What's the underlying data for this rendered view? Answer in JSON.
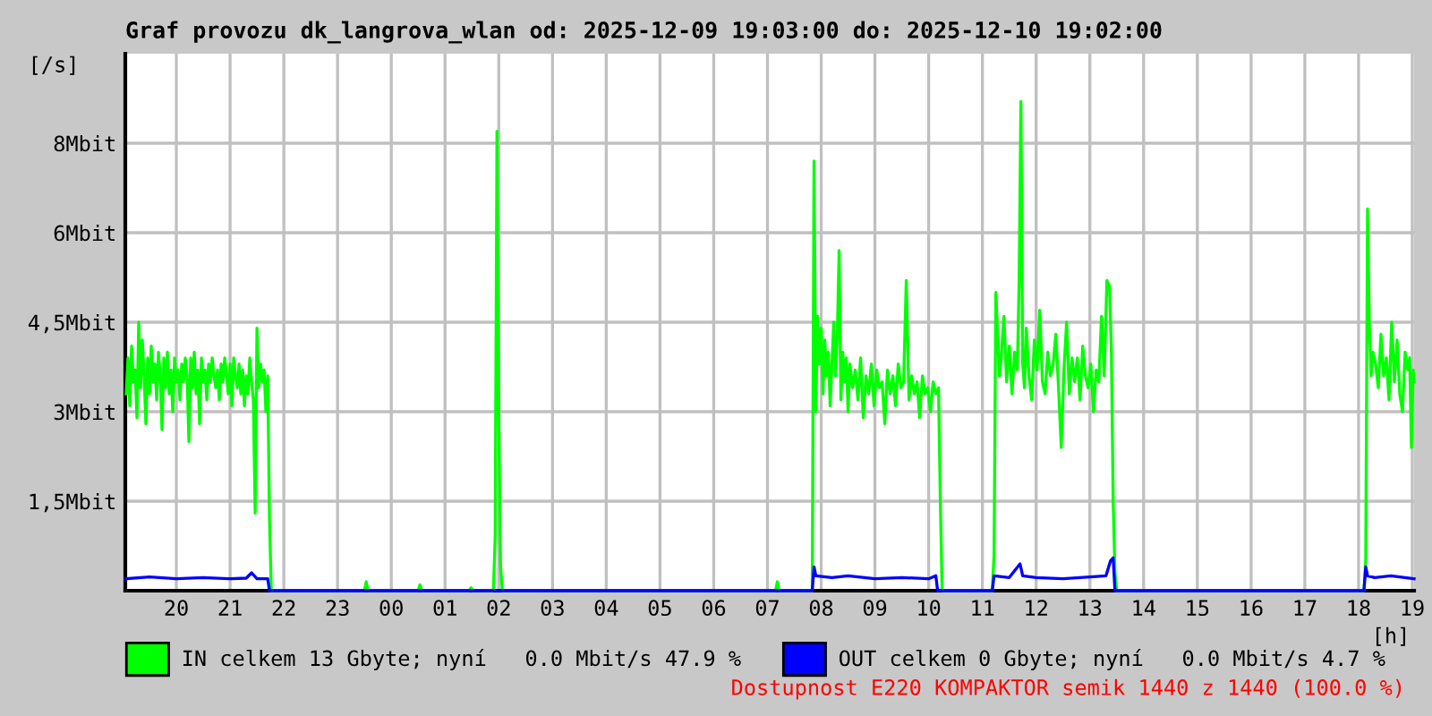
{
  "chart_data": {
    "type": "line",
    "title": "Graf provozu dk_langrova_wlan od: 2025-12-09 19:03:00 do: 2025-12-10 19:02:00",
    "xlabel": "[h]",
    "ylabel": "[/s]",
    "xlim": [
      "2025-12-09T19:03",
      "2025-12-10T19:02"
    ],
    "xticks": [
      {
        "value": "2025-12-09T20:00",
        "label": "20"
      },
      {
        "value": "2025-12-09T21:00",
        "label": "21"
      },
      {
        "value": "2025-12-09T22:00",
        "label": "22"
      },
      {
        "value": "2025-12-09T23:00",
        "label": "23"
      },
      {
        "value": "2025-12-10T00:00",
        "label": "00"
      },
      {
        "value": "2025-12-10T01:00",
        "label": "01"
      },
      {
        "value": "2025-12-10T02:00",
        "label": "02"
      },
      {
        "value": "2025-12-10T03:00",
        "label": "03"
      },
      {
        "value": "2025-12-10T04:00",
        "label": "04"
      },
      {
        "value": "2025-12-10T05:00",
        "label": "05"
      },
      {
        "value": "2025-12-10T06:00",
        "label": "06"
      },
      {
        "value": "2025-12-10T07:00",
        "label": "07"
      },
      {
        "value": "2025-12-10T08:00",
        "label": "08"
      },
      {
        "value": "2025-12-10T09:00",
        "label": "09"
      },
      {
        "value": "2025-12-10T10:00",
        "label": "10"
      },
      {
        "value": "2025-12-10T11:00",
        "label": "11"
      },
      {
        "value": "2025-12-10T12:00",
        "label": "12"
      },
      {
        "value": "2025-12-10T13:00",
        "label": "13"
      },
      {
        "value": "2025-12-10T14:00",
        "label": "14"
      },
      {
        "value": "2025-12-10T15:00",
        "label": "15"
      },
      {
        "value": "2025-12-10T16:00",
        "label": "16"
      },
      {
        "value": "2025-12-10T17:00",
        "label": "17"
      },
      {
        "value": "2025-12-10T18:00",
        "label": "18"
      },
      {
        "value": "2025-12-10T19:00",
        "label": "19"
      }
    ],
    "ylim": [
      0,
      9
    ],
    "yticks": [
      {
        "value": 1.5,
        "label": "1,5Mbit"
      },
      {
        "value": 3,
        "label": "3Mbit"
      },
      {
        "value": 4.5,
        "label": "4,5Mbit"
      },
      {
        "value": 6,
        "label": "6Mbit"
      },
      {
        "value": 7.5,
        "label": "8Mbit"
      }
    ],
    "grid": true,
    "legend": "bottom",
    "marker": "none",
    "line_style": "solid",
    "annotations": [
      "Dostupnost E220 KOMPAKTOR semik 1440 z 1440 (100.0 %)"
    ],
    "series": [
      {
        "name": "IN celkem 13 Gbyte; nyní   0.0 Mbit/s 47.9 %",
        "color": "#00ff00",
        "x": [
          "2025-12-09T19:04",
          "2025-12-09T19:06",
          "2025-12-09T19:08",
          "2025-12-09T19:10",
          "2025-12-09T19:12",
          "2025-12-09T19:14",
          "2025-12-09T19:16",
          "2025-12-09T19:18",
          "2025-12-09T19:20",
          "2025-12-09T19:22",
          "2025-12-09T19:24",
          "2025-12-09T19:26",
          "2025-12-09T19:28",
          "2025-12-09T19:30",
          "2025-12-09T19:32",
          "2025-12-09T19:34",
          "2025-12-09T19:36",
          "2025-12-09T19:38",
          "2025-12-09T19:40",
          "2025-12-09T19:42",
          "2025-12-09T19:44",
          "2025-12-09T19:46",
          "2025-12-09T19:48",
          "2025-12-09T19:50",
          "2025-12-09T19:52",
          "2025-12-09T19:54",
          "2025-12-09T19:56",
          "2025-12-09T19:58",
          "2025-12-09T20:00",
          "2025-12-09T20:02",
          "2025-12-09T20:04",
          "2025-12-09T20:06",
          "2025-12-09T20:08",
          "2025-12-09T20:10",
          "2025-12-09T20:12",
          "2025-12-09T20:14",
          "2025-12-09T20:16",
          "2025-12-09T20:18",
          "2025-12-09T20:20",
          "2025-12-09T20:22",
          "2025-12-09T20:24",
          "2025-12-09T20:26",
          "2025-12-09T20:28",
          "2025-12-09T20:30",
          "2025-12-09T20:32",
          "2025-12-09T20:34",
          "2025-12-09T20:36",
          "2025-12-09T20:38",
          "2025-12-09T20:40",
          "2025-12-09T20:42",
          "2025-12-09T20:44",
          "2025-12-09T20:46",
          "2025-12-09T20:48",
          "2025-12-09T20:50",
          "2025-12-09T20:52",
          "2025-12-09T20:54",
          "2025-12-09T20:56",
          "2025-12-09T20:58",
          "2025-12-09T21:00",
          "2025-12-09T21:02",
          "2025-12-09T21:04",
          "2025-12-09T21:06",
          "2025-12-09T21:08",
          "2025-12-09T21:10",
          "2025-12-09T21:12",
          "2025-12-09T21:14",
          "2025-12-09T21:16",
          "2025-12-09T21:18",
          "2025-12-09T21:20",
          "2025-12-09T21:22",
          "2025-12-09T21:24",
          "2025-12-09T21:26",
          "2025-12-09T21:28",
          "2025-12-09T21:30",
          "2025-12-09T21:32",
          "2025-12-09T21:34",
          "2025-12-09T21:36",
          "2025-12-09T21:38",
          "2025-12-09T21:40",
          "2025-12-09T21:42",
          "2025-12-09T21:44",
          "2025-12-09T21:46",
          "2025-12-09T23:30",
          "2025-12-09T23:32",
          "2025-12-09T23:34",
          "2025-12-10T00:30",
          "2025-12-10T00:32",
          "2025-12-10T00:34",
          "2025-12-10T01:27",
          "2025-12-10T01:29",
          "2025-12-10T01:31",
          "2025-12-10T01:54",
          "2025-12-10T01:56",
          "2025-12-10T01:58",
          "2025-12-10T02:00",
          "2025-12-10T02:02",
          "2025-12-10T02:04",
          "2025-12-10T07:09",
          "2025-12-10T07:11",
          "2025-12-10T07:13",
          "2025-12-10T07:50",
          "2025-12-10T07:52",
          "2025-12-10T07:54",
          "2025-12-10T07:56",
          "2025-12-10T07:58",
          "2025-12-10T08:00",
          "2025-12-10T08:02",
          "2025-12-10T08:04",
          "2025-12-10T08:06",
          "2025-12-10T08:08",
          "2025-12-10T08:10",
          "2025-12-10T08:12",
          "2025-12-10T08:14",
          "2025-12-10T08:16",
          "2025-12-10T08:18",
          "2025-12-10T08:20",
          "2025-12-10T08:22",
          "2025-12-10T08:24",
          "2025-12-10T08:26",
          "2025-12-10T08:28",
          "2025-12-10T08:30",
          "2025-12-10T08:32",
          "2025-12-10T08:35",
          "2025-12-10T08:38",
          "2025-12-10T08:41",
          "2025-12-10T08:44",
          "2025-12-10T08:47",
          "2025-12-10T08:50",
          "2025-12-10T08:53",
          "2025-12-10T08:56",
          "2025-12-10T08:59",
          "2025-12-10T09:02",
          "2025-12-10T09:05",
          "2025-12-10T09:08",
          "2025-12-10T09:11",
          "2025-12-10T09:14",
          "2025-12-10T09:17",
          "2025-12-10T09:20",
          "2025-12-10T09:23",
          "2025-12-10T09:26",
          "2025-12-10T09:29",
          "2025-12-10T09:32",
          "2025-12-10T09:35",
          "2025-12-10T09:38",
          "2025-12-10T09:41",
          "2025-12-10T09:44",
          "2025-12-10T09:47",
          "2025-12-10T09:50",
          "2025-12-10T09:53",
          "2025-12-10T09:56",
          "2025-12-10T09:59",
          "2025-12-10T10:02",
          "2025-12-10T10:05",
          "2025-12-10T10:08",
          "2025-12-10T10:11",
          "2025-12-10T10:13",
          "2025-12-10T10:15",
          "2025-12-10T11:11",
          "2025-12-10T11:13",
          "2025-12-10T11:15",
          "2025-12-10T11:17",
          "2025-12-10T11:19",
          "2025-12-10T11:21",
          "2025-12-10T11:24",
          "2025-12-10T11:27",
          "2025-12-10T11:30",
          "2025-12-10T11:33",
          "2025-12-10T11:36",
          "2025-12-10T11:39",
          "2025-12-10T11:41",
          "2025-12-10T11:43",
          "2025-12-10T11:45",
          "2025-12-10T11:47",
          "2025-12-10T11:49",
          "2025-12-10T11:52",
          "2025-12-10T11:55",
          "2025-12-10T11:58",
          "2025-12-10T12:01",
          "2025-12-10T12:04",
          "2025-12-10T12:07",
          "2025-12-10T12:10",
          "2025-12-10T12:13",
          "2025-12-10T12:16",
          "2025-12-10T12:19",
          "2025-12-10T12:22",
          "2025-12-10T12:25",
          "2025-12-10T12:28",
          "2025-12-10T12:31",
          "2025-12-10T12:34",
          "2025-12-10T12:37",
          "2025-12-10T12:40",
          "2025-12-10T12:43",
          "2025-12-10T12:46",
          "2025-12-10T12:49",
          "2025-12-10T12:52",
          "2025-12-10T12:55",
          "2025-12-10T12:58",
          "2025-12-10T13:01",
          "2025-12-10T13:04",
          "2025-12-10T13:07",
          "2025-12-10T13:10",
          "2025-12-10T13:13",
          "2025-12-10T13:16",
          "2025-12-10T13:19",
          "2025-12-10T13:22",
          "2025-12-10T13:24",
          "2025-12-10T13:26",
          "2025-12-10T13:28",
          "2025-12-10T13:30",
          "2025-12-10T18:06",
          "2025-12-10T18:08",
          "2025-12-10T18:10",
          "2025-12-10T18:12",
          "2025-12-10T18:14",
          "2025-12-10T18:16",
          "2025-12-10T18:19",
          "2025-12-10T18:22",
          "2025-12-10T18:25",
          "2025-12-10T18:28",
          "2025-12-10T18:31",
          "2025-12-10T18:34",
          "2025-12-10T18:37",
          "2025-12-10T18:40",
          "2025-12-10T18:43",
          "2025-12-10T18:46",
          "2025-12-10T18:49",
          "2025-12-10T18:52",
          "2025-12-10T18:55",
          "2025-12-10T18:57",
          "2025-12-10T18:59",
          "2025-12-10T19:01",
          "2025-12-10T19:02"
        ],
        "values": [
          3.3,
          3.9,
          3.1,
          4.1,
          3.5,
          3.7,
          2.9,
          4.5,
          3.4,
          4.2,
          3.6,
          2.8,
          3.9,
          3.3,
          4.1,
          3.5,
          3.8,
          3.2,
          4.0,
          3.6,
          2.7,
          3.9,
          3.4,
          4.0,
          3.3,
          3.7,
          3.0,
          3.9,
          3.5,
          3.7,
          3.2,
          3.8,
          3.5,
          3.9,
          3.6,
          2.5,
          3.9,
          3.4,
          4.0,
          3.3,
          3.7,
          2.8,
          3.9,
          3.5,
          3.7,
          3.2,
          3.8,
          3.5,
          3.9,
          3.6,
          3.4,
          3.7,
          3.2,
          3.8,
          3.5,
          3.9,
          3.6,
          3.3,
          3.8,
          3.1,
          3.9,
          3.6,
          3.4,
          3.8,
          3.3,
          3.7,
          3.1,
          3.6,
          3.3,
          3.9,
          3.5,
          3.2,
          1.3,
          4.4,
          3.4,
          3.8,
          3.5,
          3.7,
          3.0,
          3.6,
          1.2,
          0,
          0,
          0.15,
          0,
          0,
          0.1,
          0,
          0,
          0.05,
          0,
          0,
          0.9,
          7.7,
          3.0,
          0.4,
          0,
          0,
          0.15,
          0,
          0,
          7.2,
          3.0,
          4.6,
          3.8,
          4.4,
          3.3,
          4.2,
          3.6,
          4.0,
          3.1,
          3.8,
          4.5,
          3.6,
          4.3,
          5.7,
          3.2,
          4.0,
          3.5,
          3.9,
          3.0,
          3.8,
          3.4,
          3.7,
          3.2,
          3.9,
          2.9,
          3.6,
          3.3,
          3.8,
          3.1,
          3.7,
          3.4,
          3.5,
          2.8,
          3.7,
          3.3,
          3.6,
          3.1,
          3.8,
          3.4,
          3.5,
          5.2,
          3.2,
          3.6,
          3.3,
          3.5,
          2.9,
          3.6,
          3.3,
          3.4,
          3.0,
          3.5,
          3.3,
          3.4,
          1.5,
          0,
          0,
          0.6,
          5.0,
          4.3,
          3.6,
          3.9,
          4.6,
          3.5,
          4.1,
          3.3,
          4.0,
          3.7,
          5.2,
          8.2,
          3.8,
          3.4,
          4.4,
          3.6,
          3.2,
          4.2,
          3.7,
          4.7,
          3.5,
          3.3,
          4.0,
          3.6,
          3.8,
          4.3,
          3.4,
          2.4,
          3.7,
          4.5,
          3.3,
          3.9,
          3.5,
          3.9,
          3.2,
          4.1,
          3.6,
          3.4,
          3.8,
          3.0,
          3.7,
          3.5,
          4.6,
          3.6,
          5.2,
          5.1,
          4.0,
          1.5,
          0.3,
          0,
          0,
          0.5,
          6.4,
          4.5,
          3.6,
          4.0,
          3.8,
          3.4,
          4.3,
          3.6,
          3.9,
          3.2,
          4.5,
          3.5,
          4.2,
          3.3,
          3.0,
          4.0,
          3.7,
          3.9,
          2.4,
          3.7,
          3.5
        ]
      },
      {
        "name": "OUT celkem 0 Gbyte; nyní   0.0 Mbit/s 4.7 %",
        "color": "#0000ff",
        "x": [
          "2025-12-09T19:03",
          "2025-12-09T19:30",
          "2025-12-09T20:00",
          "2025-12-09T20:30",
          "2025-12-09T21:00",
          "2025-12-09T21:18",
          "2025-12-09T21:24",
          "2025-12-09T21:30",
          "2025-12-09T21:42",
          "2025-12-09T21:44",
          "2025-12-10T07:50",
          "2025-12-10T07:52",
          "2025-12-10T07:54",
          "2025-12-10T08:12",
          "2025-12-10T08:30",
          "2025-12-10T09:00",
          "2025-12-10T09:30",
          "2025-12-10T10:00",
          "2025-12-10T10:08",
          "2025-12-10T10:10",
          "2025-12-10T11:11",
          "2025-12-10T11:13",
          "2025-12-10T11:30",
          "2025-12-10T11:42",
          "2025-12-10T11:45",
          "2025-12-10T12:00",
          "2025-12-10T12:30",
          "2025-12-10T13:00",
          "2025-12-10T13:18",
          "2025-12-10T13:23",
          "2025-12-10T13:26",
          "2025-12-10T13:28",
          "2025-12-10T18:06",
          "2025-12-10T18:08",
          "2025-12-10T18:10",
          "2025-12-10T18:18",
          "2025-12-10T18:36",
          "2025-12-10T19:02"
        ],
        "values": [
          0.2,
          0.23,
          0.2,
          0.22,
          0.2,
          0.21,
          0.3,
          0.2,
          0.2,
          0,
          0,
          0.4,
          0.25,
          0.22,
          0.25,
          0.2,
          0.22,
          0.2,
          0.25,
          0,
          0,
          0.25,
          0.22,
          0.45,
          0.25,
          0.22,
          0.2,
          0.23,
          0.25,
          0.5,
          0.55,
          0,
          0,
          0.4,
          0.25,
          0.22,
          0.25,
          0.2
        ]
      }
    ]
  }
}
